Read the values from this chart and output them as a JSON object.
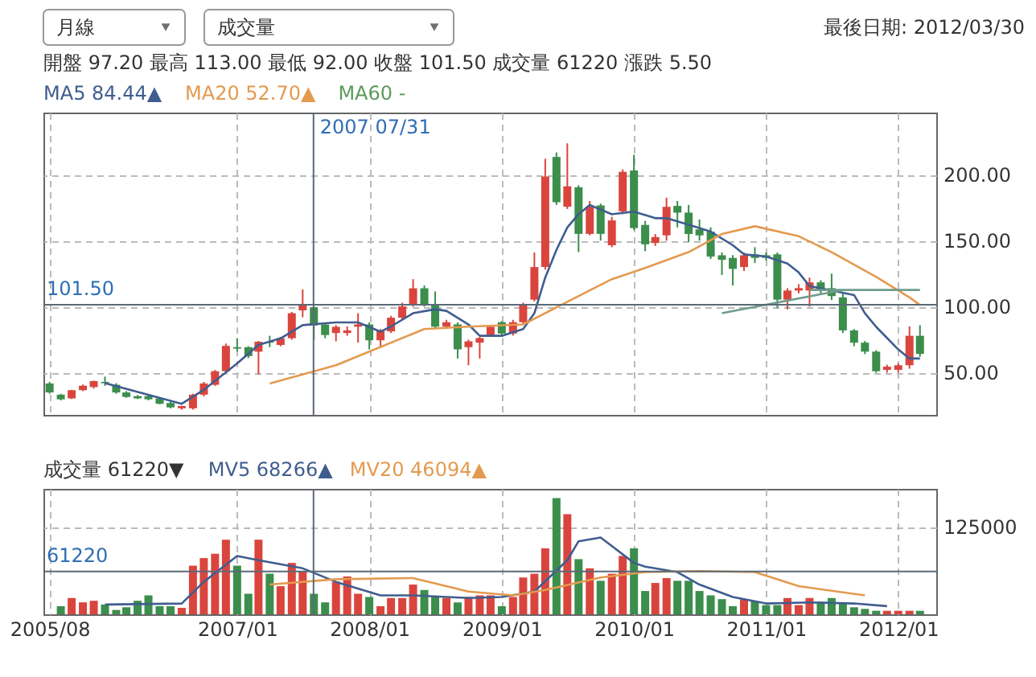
{
  "chart_data": [
    {
      "type": "candlestick",
      "annotations": [
        "月線",
        "成交量",
        "最後日期: 2012/03/30",
        "開盤 97.20   最高 113.00   最低 92.00   收盤 101.50   成交量 61220   漲跌 5.50",
        "MA60 -"
      ],
      "xlim": [
        "2005-07-15",
        "2012-04-15"
      ],
      "ylim": [
        18,
        247
      ],
      "yticks": [
        {
          "value": 50,
          "label": "50.00"
        },
        {
          "value": 100,
          "label": "100.00"
        },
        {
          "value": 150,
          "label": "150.00"
        },
        {
          "value": 200,
          "label": "200.00"
        }
      ],
      "xticks": [
        {
          "value": "2005-08",
          "label": null
        },
        {
          "value": "2007-01",
          "label": null
        },
        {
          "value": "2008-01",
          "label": null
        },
        {
          "value": "2009-01",
          "label": null
        },
        {
          "value": "2010-01",
          "label": null
        },
        {
          "value": "2011-01",
          "label": null
        },
        {
          "value": "2012-01",
          "label": null
        }
      ],
      "tick_labels": "y",
      "grid": true,
      "ref_lines": [
        {
          "axis": "x",
          "value": "2007-07-31",
          "label": "2007 07/31",
          "color": "#5a6a78"
        },
        {
          "axis": "y",
          "value": 101.5,
          "label": "101.50",
          "color": "#5a6a78"
        }
      ],
      "series": [
        {
          "x": [
            "2005-08",
            "2005-09",
            "2005-10",
            "2005-11",
            "2005-12",
            "2006-01",
            "2006-02",
            "2006-03",
            "2006-04",
            "2006-05",
            "2006-06",
            "2006-07",
            "2006-08",
            "2006-09",
            "2006-10",
            "2006-11",
            "2006-12",
            "2007-01",
            "2007-02",
            "2007-03",
            "2007-04",
            "2007-05",
            "2007-06",
            "2007-07",
            "2007-08",
            "2007-09",
            "2007-10",
            "2007-11",
            "2007-12",
            "2008-01",
            "2008-02",
            "2008-03",
            "2008-04",
            "2008-05",
            "2008-06",
            "2008-07",
            "2008-08",
            "2008-09",
            "2008-10",
            "2008-11",
            "2008-12",
            "2009-01",
            "2009-02",
            "2009-03",
            "2009-04",
            "2009-05",
            "2009-06",
            "2009-07",
            "2009-08",
            "2009-09",
            "2009-10",
            "2009-11",
            "2009-12",
            "2010-01",
            "2010-02",
            "2010-03",
            "2010-04",
            "2010-05",
            "2010-06",
            "2010-07",
            "2010-08",
            "2010-09",
            "2010-10",
            "2010-11",
            "2010-12",
            "2011-01",
            "2011-02",
            "2011-03",
            "2011-04",
            "2011-05",
            "2011-06",
            "2011-07",
            "2011-08",
            "2011-09",
            "2011-10",
            "2011-11",
            "2011-12",
            "2012-01",
            "2012-02",
            "2012-03"
          ],
          "ohlc": [
            [
              41.8,
              43,
              34,
              35.0
            ],
            [
              33.3,
              34,
              29,
              29.8
            ],
            [
              30.5,
              37,
              30,
              36.7
            ],
            [
              36.7,
              41,
              36,
              40.1
            ],
            [
              39.1,
              44,
              38,
              43.6
            ],
            [
              43,
              47,
              40,
              42
            ],
            [
              40.8,
              42,
              34,
              35.0
            ],
            [
              35,
              36,
              31,
              31.6
            ],
            [
              32.2,
              33,
              30,
              30.5
            ],
            [
              32.2,
              33,
              29,
              29.8
            ],
            [
              30.5,
              31,
              26,
              26.4
            ],
            [
              27,
              28,
              23,
              23.7
            ],
            [
              23.0,
              25,
              22,
              24.7
            ],
            [
              23.0,
              34,
              22,
              33.3
            ],
            [
              33.3,
              43,
              32,
              41.8
            ],
            [
              40.8,
              52,
              40,
              51.1
            ],
            [
              51.1,
              72,
              50,
              70.3
            ],
            [
              69.3,
              76.1,
              65.9,
              68.2
            ],
            [
              69.3,
              70,
              61,
              62.5
            ],
            [
              65.9,
              74,
              48.7,
              73.4
            ],
            [
              73.4,
              77.9,
              69.3,
              72.7
            ],
            [
              71.0,
              77,
              70,
              76.1
            ],
            [
              76.1,
              96,
              75,
              95.0
            ],
            [
              97.2,
              113,
              92,
              101.5
            ],
            [
              99.5,
              100,
              75,
              85.8
            ],
            [
              86.4,
              88,
              76,
              78.5
            ],
            [
              80,
              86,
              73.7,
              84.7
            ],
            [
              80,
              85,
              78,
              82
            ],
            [
              84.8,
              95,
              72.8,
              86.5
            ],
            [
              86.5,
              88,
              67.6,
              74.5
            ],
            [
              74.5,
              83,
              69,
              81.3
            ],
            [
              81.3,
              93,
              80,
              91.6
            ],
            [
              91.6,
              103,
              90,
              100.2
            ],
            [
              101.9,
              120.8,
              100,
              113.9
            ],
            [
              113.9,
              116,
              100,
              101.9
            ],
            [
              101.9,
              111.5,
              83,
              84.8
            ],
            [
              84.8,
              90,
              83,
              88.2
            ],
            [
              86.5,
              88,
              60.7,
              67.6
            ],
            [
              69.3,
              75,
              55.6,
              73.7
            ],
            [
              72.7,
              77,
              60.7,
              76.2
            ],
            [
              77.9,
              86,
              77,
              84.8
            ],
            [
              88.2,
              89,
              78,
              79.6
            ],
            [
              79.6,
              90,
              78,
              88.2
            ],
            [
              88.2,
              103,
              87,
              101.9
            ],
            [
              105.3,
              141,
              104,
              130.0
            ],
            [
              130,
              212,
              128,
              198.6
            ],
            [
              213.4,
              216.8,
              177,
              179.1
            ],
            [
              175.7,
              223.7,
              174,
              191.1
            ],
            [
              190.4,
              192,
              141.3,
              155.1
            ],
            [
              155.1,
              180,
              154,
              175.7
            ],
            [
              176.7,
              178,
              150,
              155.1
            ],
            [
              146.5,
              168,
              145,
              165.3
            ],
            [
              172.2,
              204,
              170,
              202.1
            ],
            [
              203.1,
              215,
              158,
              159.5
            ],
            [
              161.9,
              165,
              142,
              147.2
            ],
            [
              148.2,
              155,
              146,
              152.7
            ],
            [
              154,
              182.5,
              150,
              175.6
            ],
            [
              176.3,
              180,
              160,
              171.2
            ],
            [
              171.2,
              177,
              149,
              155
            ],
            [
              158.5,
              166,
              150,
              154
            ],
            [
              156.8,
              160,
              136,
              137.9
            ],
            [
              138.9,
              141,
              124,
              135.5
            ],
            [
              136.9,
              139,
              116,
              128.6
            ],
            [
              130,
              141,
              127,
              138.9
            ],
            [
              139.6,
              145,
              133,
              136.9
            ],
            [
              138.9,
              141,
              135,
              136.9
            ],
            [
              139.6,
              141,
              98.9,
              105.3
            ],
            [
              105.3,
              114,
              98,
              112.2
            ],
            [
              112.2,
              117,
              110,
              114
            ],
            [
              112.2,
              122,
              100,
              118.4
            ],
            [
              118.4,
              120,
              110,
              112.2
            ],
            [
              114,
              125,
              105,
              108
            ],
            [
              107,
              111,
              80,
              82
            ],
            [
              82,
              83,
              70,
              72.7
            ],
            [
              72.7,
              74,
              64,
              65.9
            ],
            [
              65.9,
              67,
              50,
              51.1
            ],
            [
              52.1,
              56,
              50,
              54.5
            ],
            [
              52.1,
              57,
              50,
              55.6
            ],
            [
              55.6,
              85,
              53,
              77.9
            ],
            [
              77.9,
              86,
              62,
              64.2
            ]
          ],
          "colors": [
            "#3b8e4b",
            "#3b8e4b",
            "#d9453d",
            "#d9453d",
            "#d9453d",
            "#3b8e4b",
            "#3b8e4b",
            "#3b8e4b",
            "#3b8e4b",
            "#3b8e4b",
            "#3b8e4b",
            "#3b8e4b",
            "#d9453d",
            "#d9453d",
            "#d9453d",
            "#d9453d",
            "#d9453d",
            "#3b8e4b",
            "#3b8e4b",
            "#d9453d",
            "#3b8e4b",
            "#d9453d",
            "#d9453d",
            "#d9453d",
            "#3b8e4b",
            "#3b8e4b",
            "#d9453d",
            "#d9453d",
            "#d9453d",
            "#3b8e4b",
            "#d9453d",
            "#d9453d",
            "#d9453d",
            "#d9453d",
            "#3b8e4b",
            "#3b8e4b",
            "#d9453d",
            "#3b8e4b",
            "#d9453d",
            "#d9453d",
            "#d9453d",
            "#3b8e4b",
            "#d9453d",
            "#d9453d",
            "#d9453d",
            "#d9453d",
            "#3b8e4b",
            "#d9453d",
            "#3b8e4b",
            "#d9453d",
            "#3b8e4b",
            "#d9453d",
            "#d9453d",
            "#3b8e4b",
            "#3b8e4b",
            "#d9453d",
            "#d9453d",
            "#3b8e4b",
            "#3b8e4b",
            "#3b8e4b",
            "#3b8e4b",
            "#3b8e4b",
            "#3b8e4b",
            "#d9453d",
            "#3b8e4b",
            "#3b8e4b",
            "#3b8e4b",
            "#d9453d",
            "#d9453d",
            "#d9453d",
            "#3b8e4b",
            "#3b8e4b",
            "#3b8e4b",
            "#3b8e4b",
            "#3b8e4b",
            "#3b8e4b",
            "#d9453d",
            "#d9453d",
            "#d9453d",
            "#3b8e4b"
          ]
        },
        {
          "type": "line",
          "name": "MA5 84.44▲",
          "color": "#3f5d8f",
          "x": [
            "2006-01",
            "2006-08",
            "2006-10",
            "2007-01",
            "2007-03",
            "2007-05",
            "2007-07",
            "2007-10",
            "2007-12",
            "2008-02",
            "2008-03",
            "2008-05",
            "2008-07",
            "2008-08",
            "2008-10",
            "2008-11",
            "2009-01",
            "2009-03",
            "2009-04",
            "2009-05",
            "2009-06",
            "2009-07",
            "2009-08",
            "2009-09",
            "2009-11",
            "2010-01",
            "2010-03",
            "2010-04",
            "2010-06",
            "2010-08",
            "2010-10",
            "2010-11",
            "2011-01",
            "2011-03",
            "2011-04",
            "2011-05",
            "2011-07",
            "2011-09",
            "2011-10",
            "2011-11",
            "2012-01",
            "2012-02",
            "2012-03"
          ],
          "values": [
            42,
            26.4,
            37,
            57,
            71,
            76,
            86,
            88,
            88,
            81,
            85,
            95,
            98,
            96.8,
            86.5,
            77.9,
            77.9,
            83,
            95,
            122,
            143,
            160,
            170,
            177,
            170,
            172,
            167,
            167,
            162,
            156.8,
            146.5,
            139.6,
            138,
            132.7,
            125.9,
            115.6,
            112.2,
            108.8,
            95,
            84.7,
            67.6,
            60.7,
            60.7
          ]
        },
        {
          "type": "line",
          "name": "MA20 52.70▲",
          "color": "#e39a4f",
          "x": [
            "2007-04",
            "2007-10",
            "2007-12",
            "2008-06",
            "2008-10",
            "2009-03",
            "2009-07",
            "2009-11",
            "2010-02",
            "2010-06",
            "2010-09",
            "2010-12",
            "2011-04",
            "2011-07",
            "2011-11",
            "2012-02",
            "2012-03"
          ],
          "values": [
            41.8,
            55.6,
            62.5,
            83,
            84.8,
            86.5,
            103.6,
            120.8,
            129.3,
            141.3,
            155,
            160.9,
            153.3,
            141.3,
            122.5,
            107,
            101.2
          ]
        },
        {
          "type": "line",
          "color": "#6f9c8c",
          "x": [
            "2010-09",
            "2011-08"
          ],
          "values": [
            95.1,
            112.6
          ]
        },
        {
          "type": "line",
          "color": "#6f9c8c",
          "x": [
            "2011-05",
            "2012-03"
          ],
          "values": [
            112.6,
            112.6
          ]
        }
      ]
    },
    {
      "type": "bar",
      "annotations": [
        "成交量 61220▼"
      ],
      "xlim": [
        "2005-07-15",
        "2012-04-15"
      ],
      "ylim": [
        0,
        179000
      ],
      "yticks": [
        125000
      ],
      "xticks": [
        {
          "value": "2005-08",
          "label": "2005/08"
        },
        {
          "value": "2007-01",
          "label": "2007/01"
        },
        {
          "value": "2008-01",
          "label": "2008/01"
        },
        {
          "value": "2009-01",
          "label": "2009/01"
        },
        {
          "value": "2010-01",
          "label": "2010/01"
        },
        {
          "value": "2011-01",
          "label": "2011/01"
        },
        {
          "value": "2012-01",
          "label": "2012/01"
        }
      ],
      "grid": true,
      "ref_lines": [
        {
          "axis": "x",
          "value": "2007-07-31",
          "label": null,
          "color": "#5a6a78"
        },
        {
          "axis": "y",
          "value": 61220,
          "label": "61220",
          "color": "#5a6a78"
        }
      ],
      "series": [
        {
          "x": [
            "2005-09",
            "2005-10",
            "2005-11",
            "2005-12",
            "2006-01",
            "2006-02",
            "2006-03",
            "2006-04",
            "2006-05",
            "2006-06",
            "2006-07",
            "2006-08",
            "2006-09",
            "2006-10",
            "2006-11",
            "2006-12",
            "2007-01",
            "2007-02",
            "2007-03",
            "2007-04",
            "2007-05",
            "2007-06",
            "2007-07",
            "2007-08",
            "2007-09",
            "2007-10",
            "2007-11",
            "2007-12",
            "2008-01",
            "2008-02",
            "2008-03",
            "2008-04",
            "2008-05",
            "2008-06",
            "2008-07",
            "2008-08",
            "2008-09",
            "2008-10",
            "2008-11",
            "2008-12",
            "2009-01",
            "2009-02",
            "2009-03",
            "2009-04",
            "2009-05",
            "2009-06",
            "2009-07",
            "2009-08",
            "2009-09",
            "2009-10",
            "2009-11",
            "2009-12",
            "2010-01",
            "2010-02",
            "2010-03",
            "2010-04",
            "2010-05",
            "2010-06",
            "2010-07",
            "2010-08",
            "2010-09",
            "2010-10",
            "2010-11",
            "2010-12",
            "2011-01",
            "2011-02",
            "2011-03",
            "2011-04",
            "2011-05",
            "2011-06",
            "2011-07",
            "2011-08",
            "2011-09",
            "2011-10",
            "2011-11",
            "2011-12",
            "2012-01",
            "2012-02",
            "2012-03"
          ],
          "values": [
            11560,
            23200,
            17000,
            19300,
            13900,
            6200,
            10000,
            19300,
            27000,
            11560,
            11560,
            9250,
            69400,
            80200,
            86400,
            106500,
            69400,
            29300,
            106500,
            57900,
            40100,
            73300,
            61220,
            29300,
            17000,
            46300,
            54000,
            29300,
            24700,
            11560,
            23200,
            23200,
            42400,
            34700,
            24700,
            23200,
            17000,
            24700,
            27000,
            27000,
            11560,
            24700,
            52500,
            57900,
            94100,
            165900,
            142800,
            78700,
            65600,
            47800,
            57900,
            83300,
            94100,
            33200,
            44700,
            51700,
            47800,
            47800,
            33200,
            27000,
            21600,
            11560,
            21600,
            18500,
            13100,
            13100,
            23200,
            13100,
            23200,
            17000,
            23200,
            17000,
            10000,
            7700,
            5000,
            5000,
            5000,
            5000,
            5000
          ],
          "colors": [
            "#3b8e4b",
            "#d9453d",
            "#d9453d",
            "#d9453d",
            "#3b8e4b",
            "#3b8e4b",
            "#3b8e4b",
            "#3b8e4b",
            "#3b8e4b",
            "#3b8e4b",
            "#3b8e4b",
            "#d9453d",
            "#d9453d",
            "#d9453d",
            "#d9453d",
            "#d9453d",
            "#3b8e4b",
            "#3b8e4b",
            "#d9453d",
            "#3b8e4b",
            "#d9453d",
            "#d9453d",
            "#d9453d",
            "#3b8e4b",
            "#3b8e4b",
            "#d9453d",
            "#d9453d",
            "#d9453d",
            "#3b8e4b",
            "#d9453d",
            "#d9453d",
            "#d9453d",
            "#d9453d",
            "#3b8e4b",
            "#3b8e4b",
            "#d9453d",
            "#3b8e4b",
            "#d9453d",
            "#d9453d",
            "#d9453d",
            "#3b8e4b",
            "#d9453d",
            "#d9453d",
            "#d9453d",
            "#d9453d",
            "#3b8e4b",
            "#d9453d",
            "#3b8e4b",
            "#d9453d",
            "#3b8e4b",
            "#d9453d",
            "#d9453d",
            "#3b8e4b",
            "#3b8e4b",
            "#d9453d",
            "#d9453d",
            "#3b8e4b",
            "#3b8e4b",
            "#3b8e4b",
            "#3b8e4b",
            "#3b8e4b",
            "#3b8e4b",
            "#d9453d",
            "#3b8e4b",
            "#3b8e4b",
            "#3b8e4b",
            "#d9453d",
            "#d9453d",
            "#d9453d",
            "#3b8e4b",
            "#3b8e4b",
            "#3b8e4b",
            "#3b8e4b",
            "#3b8e4b",
            "#3b8e4b",
            "#d9453d",
            "#d9453d",
            "#d9453d",
            "#3b8e4b"
          ]
        },
        {
          "type": "line",
          "name": "MV5 68266▲",
          "color": "#3f5d8f",
          "x": [
            "2006-01",
            "2006-08",
            "2006-10",
            "2007-01",
            "2007-03",
            "2007-07",
            "2007-10",
            "2008-02",
            "2008-05",
            "2008-10",
            "2009-01",
            "2009-04",
            "2009-07",
            "2009-08",
            "2009-10",
            "2010-01",
            "2010-02",
            "2010-05",
            "2010-07",
            "2010-10",
            "2011-01",
            "2011-05",
            "2011-09",
            "2011-12"
          ],
          "values": [
            13900,
            15400,
            46300,
            83300,
            77200,
            65600,
            46300,
            27000,
            27000,
            23200,
            24700,
            32400,
            77200,
            104200,
            109600,
            73300,
            67900,
            60200,
            42400,
            24700,
            15400,
            17000,
            15400,
            11600
          ]
        },
        {
          "type": "line",
          "name": "MV20 46094▲",
          "color": "#e39a4f",
          "x": [
            "2007-04",
            "2007-10",
            "2008-05",
            "2008-10",
            "2009-02",
            "2009-05",
            "2009-10",
            "2010-02",
            "2010-07",
            "2010-12",
            "2011-04",
            "2011-10"
          ],
          "values": [
            42400,
            50100,
            51700,
            32400,
            27000,
            34700,
            52500,
            60200,
            61700,
            60200,
            40100,
            27000
          ]
        }
      ]
    }
  ]
}
